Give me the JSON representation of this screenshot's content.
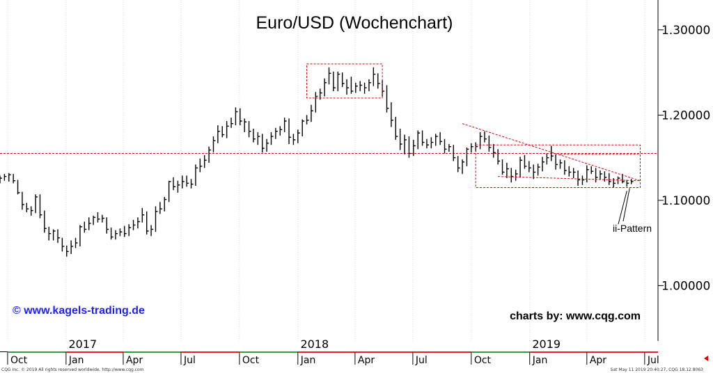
{
  "chart_data": {
    "type": "ohlc",
    "title": "Euro/USD (Wochenchart)",
    "ylim": [
      0.935,
      1.335
    ],
    "y_ticks": [
      "1.30000",
      "1.20000",
      "1.10000",
      "1.00000"
    ],
    "y_tick_values": [
      1.3,
      1.2,
      1.1,
      1.0
    ],
    "x_range": [
      "2016-09-19",
      "2019-07-22"
    ],
    "month_ticks": [
      {
        "label": "Oct",
        "date": "2016-10-01"
      },
      {
        "label": "Jan",
        "date": "2017-01-01"
      },
      {
        "label": "Apr",
        "date": "2017-04-01"
      },
      {
        "label": "Jul",
        "date": "2017-07-01"
      },
      {
        "label": "Oct",
        "date": "2017-10-01"
      },
      {
        "label": "Jan",
        "date": "2018-01-01"
      },
      {
        "label": "Apr",
        "date": "2018-04-01"
      },
      {
        "label": "Jul",
        "date": "2018-07-01"
      },
      {
        "label": "Oct",
        "date": "2018-10-01"
      },
      {
        "label": "Jan",
        "date": "2019-01-01"
      },
      {
        "label": "Apr",
        "date": "2019-04-01"
      },
      {
        "label": "Jul",
        "date": "2019-07-01"
      }
    ],
    "year_labels": [
      {
        "label": "2017",
        "date": "2017-01-01"
      },
      {
        "label": "2018",
        "date": "2018-01-01"
      },
      {
        "label": "2019",
        "date": "2019-01-01"
      }
    ],
    "series": [
      {
        "start_date": "2016-09-19",
        "interval_days": 7,
        "close": [
          1.126,
          1.128,
          1.13,
          1.123,
          1.109,
          1.095,
          1.09,
          1.088,
          1.104,
          1.083,
          1.067,
          1.061,
          1.064,
          1.056,
          1.046,
          1.04,
          1.046,
          1.05,
          1.069,
          1.066,
          1.073,
          1.08,
          1.078,
          1.079,
          1.066,
          1.057,
          1.061,
          1.063,
          1.061,
          1.068,
          1.071,
          1.075,
          1.083,
          1.064,
          1.066,
          1.087,
          1.09,
          1.101,
          1.122,
          1.116,
          1.118,
          1.122,
          1.12,
          1.119,
          1.138,
          1.14,
          1.147,
          1.159,
          1.17,
          1.181,
          1.177,
          1.187,
          1.19,
          1.204,
          1.193,
          1.192,
          1.181,
          1.172,
          1.175,
          1.161,
          1.167,
          1.175,
          1.181,
          1.183,
          1.193,
          1.174,
          1.171,
          1.179,
          1.193,
          1.194,
          1.205,
          1.222,
          1.226,
          1.238,
          1.249,
          1.232,
          1.248,
          1.237,
          1.232,
          1.228,
          1.234,
          1.235,
          1.232,
          1.238,
          1.248,
          1.237,
          1.228,
          1.208,
          1.194,
          1.175,
          1.166,
          1.171,
          1.155,
          1.164,
          1.179,
          1.168,
          1.165,
          1.168,
          1.175,
          1.169,
          1.16,
          1.163,
          1.15,
          1.138,
          1.145,
          1.16,
          1.163,
          1.163,
          1.175,
          1.172,
          1.162,
          1.156,
          1.146,
          1.133,
          1.137,
          1.128,
          1.131,
          1.147,
          1.14,
          1.138,
          1.133,
          1.139,
          1.145,
          1.15,
          1.152,
          1.142,
          1.144,
          1.135,
          1.133,
          1.133,
          1.124,
          1.124,
          1.136,
          1.134,
          1.127,
          1.131,
          1.127,
          1.122,
          1.12,
          1.126,
          1.122,
          1.12,
          1.122
        ],
        "high": [
          1.129,
          1.131,
          1.132,
          1.131,
          1.124,
          1.11,
          1.097,
          1.093,
          1.107,
          1.107,
          1.088,
          1.069,
          1.066,
          1.066,
          1.056,
          1.047,
          1.053,
          1.056,
          1.071,
          1.075,
          1.08,
          1.082,
          1.086,
          1.083,
          1.08,
          1.068,
          1.065,
          1.067,
          1.07,
          1.072,
          1.077,
          1.08,
          1.091,
          1.087,
          1.071,
          1.093,
          1.098,
          1.104,
          1.123,
          1.127,
          1.123,
          1.129,
          1.129,
          1.125,
          1.142,
          1.149,
          1.153,
          1.163,
          1.175,
          1.188,
          1.187,
          1.193,
          1.197,
          1.209,
          1.208,
          1.196,
          1.193,
          1.184,
          1.18,
          1.178,
          1.172,
          1.18,
          1.185,
          1.187,
          1.197,
          1.196,
          1.178,
          1.183,
          1.195,
          1.2,
          1.212,
          1.227,
          1.231,
          1.243,
          1.256,
          1.251,
          1.251,
          1.25,
          1.242,
          1.245,
          1.238,
          1.24,
          1.238,
          1.242,
          1.256,
          1.249,
          1.241,
          1.235,
          1.215,
          1.198,
          1.184,
          1.177,
          1.175,
          1.171,
          1.182,
          1.182,
          1.172,
          1.174,
          1.178,
          1.18,
          1.172,
          1.166,
          1.165,
          1.152,
          1.148,
          1.162,
          1.167,
          1.168,
          1.18,
          1.181,
          1.176,
          1.166,
          1.16,
          1.148,
          1.144,
          1.138,
          1.136,
          1.151,
          1.153,
          1.146,
          1.142,
          1.143,
          1.151,
          1.155,
          1.164,
          1.154,
          1.148,
          1.147,
          1.14,
          1.138,
          1.135,
          1.129,
          1.141,
          1.14,
          1.138,
          1.135,
          1.134,
          1.132,
          1.126,
          1.128,
          1.131,
          1.124,
          1.125
        ],
        "low": [
          1.12,
          1.123,
          1.122,
          1.12,
          1.107,
          1.089,
          1.086,
          1.082,
          1.085,
          1.079,
          1.062,
          1.053,
          1.053,
          1.05,
          1.04,
          1.034,
          1.037,
          1.044,
          1.046,
          1.062,
          1.065,
          1.071,
          1.074,
          1.074,
          1.061,
          1.054,
          1.054,
          1.058,
          1.057,
          1.058,
          1.065,
          1.067,
          1.074,
          1.06,
          1.058,
          1.063,
          1.084,
          1.087,
          1.098,
          1.112,
          1.109,
          1.114,
          1.116,
          1.114,
          1.117,
          1.133,
          1.138,
          1.144,
          1.156,
          1.167,
          1.174,
          1.173,
          1.185,
          1.188,
          1.188,
          1.18,
          1.174,
          1.168,
          1.165,
          1.156,
          1.157,
          1.165,
          1.172,
          1.176,
          1.18,
          1.166,
          1.165,
          1.167,
          1.175,
          1.189,
          1.192,
          1.203,
          1.218,
          1.222,
          1.236,
          1.228,
          1.228,
          1.233,
          1.224,
          1.225,
          1.226,
          1.228,
          1.225,
          1.228,
          1.234,
          1.231,
          1.222,
          1.203,
          1.186,
          1.171,
          1.159,
          1.154,
          1.15,
          1.152,
          1.16,
          1.164,
          1.161,
          1.161,
          1.164,
          1.165,
          1.155,
          1.157,
          1.146,
          1.133,
          1.131,
          1.14,
          1.156,
          1.157,
          1.16,
          1.168,
          1.157,
          1.15,
          1.142,
          1.13,
          1.126,
          1.121,
          1.123,
          1.127,
          1.137,
          1.133,
          1.125,
          1.129,
          1.134,
          1.142,
          1.146,
          1.136,
          1.137,
          1.13,
          1.128,
          1.126,
          1.117,
          1.118,
          1.121,
          1.131,
          1.121,
          1.124,
          1.122,
          1.118,
          1.115,
          1.119,
          1.12,
          1.116,
          1.119
        ]
      }
    ],
    "annotations": {
      "h_line": {
        "value": 1.155
      },
      "top_box": {
        "start": "2018-01-15",
        "end": "2018-05-14",
        "low": 1.22,
        "high": 1.26
      },
      "range_box": {
        "start": "2018-10-08",
        "end": "2019-06-24",
        "low": 1.115,
        "high": 1.165
      },
      "trend_line": {
        "start_date": "2018-09-17",
        "start_value": 1.19,
        "end_date": "2019-06-24",
        "end_value": 1.123
      },
      "channel_lines": [
        {
          "start_date": "2018-11-12",
          "start_value": 1.128,
          "end_date": "2019-06-24",
          "end_value": 1.123
        },
        {
          "start_date": "2019-02-18",
          "start_value": 1.154,
          "end_date": "2019-06-24",
          "end_value": 1.154
        }
      ],
      "ii_label": "ii-Pattern"
    },
    "colors": {
      "bars": "#000000",
      "annotation": "#e00000",
      "watermark": "#1e1eff",
      "grid": "#d8d8d8"
    },
    "grid": "vertical dotted"
  },
  "watermark": {
    "text": "© www.kagels-trading.de"
  },
  "credit": {
    "text": "charts by: www.cqg.com"
  },
  "footer": {
    "left": "CQG Inc. © 2019 All rights reserved worldwide. http://www.cqg.com",
    "right": "Sat May 11 2019 20:40:27, CQG 18.12.8063"
  }
}
